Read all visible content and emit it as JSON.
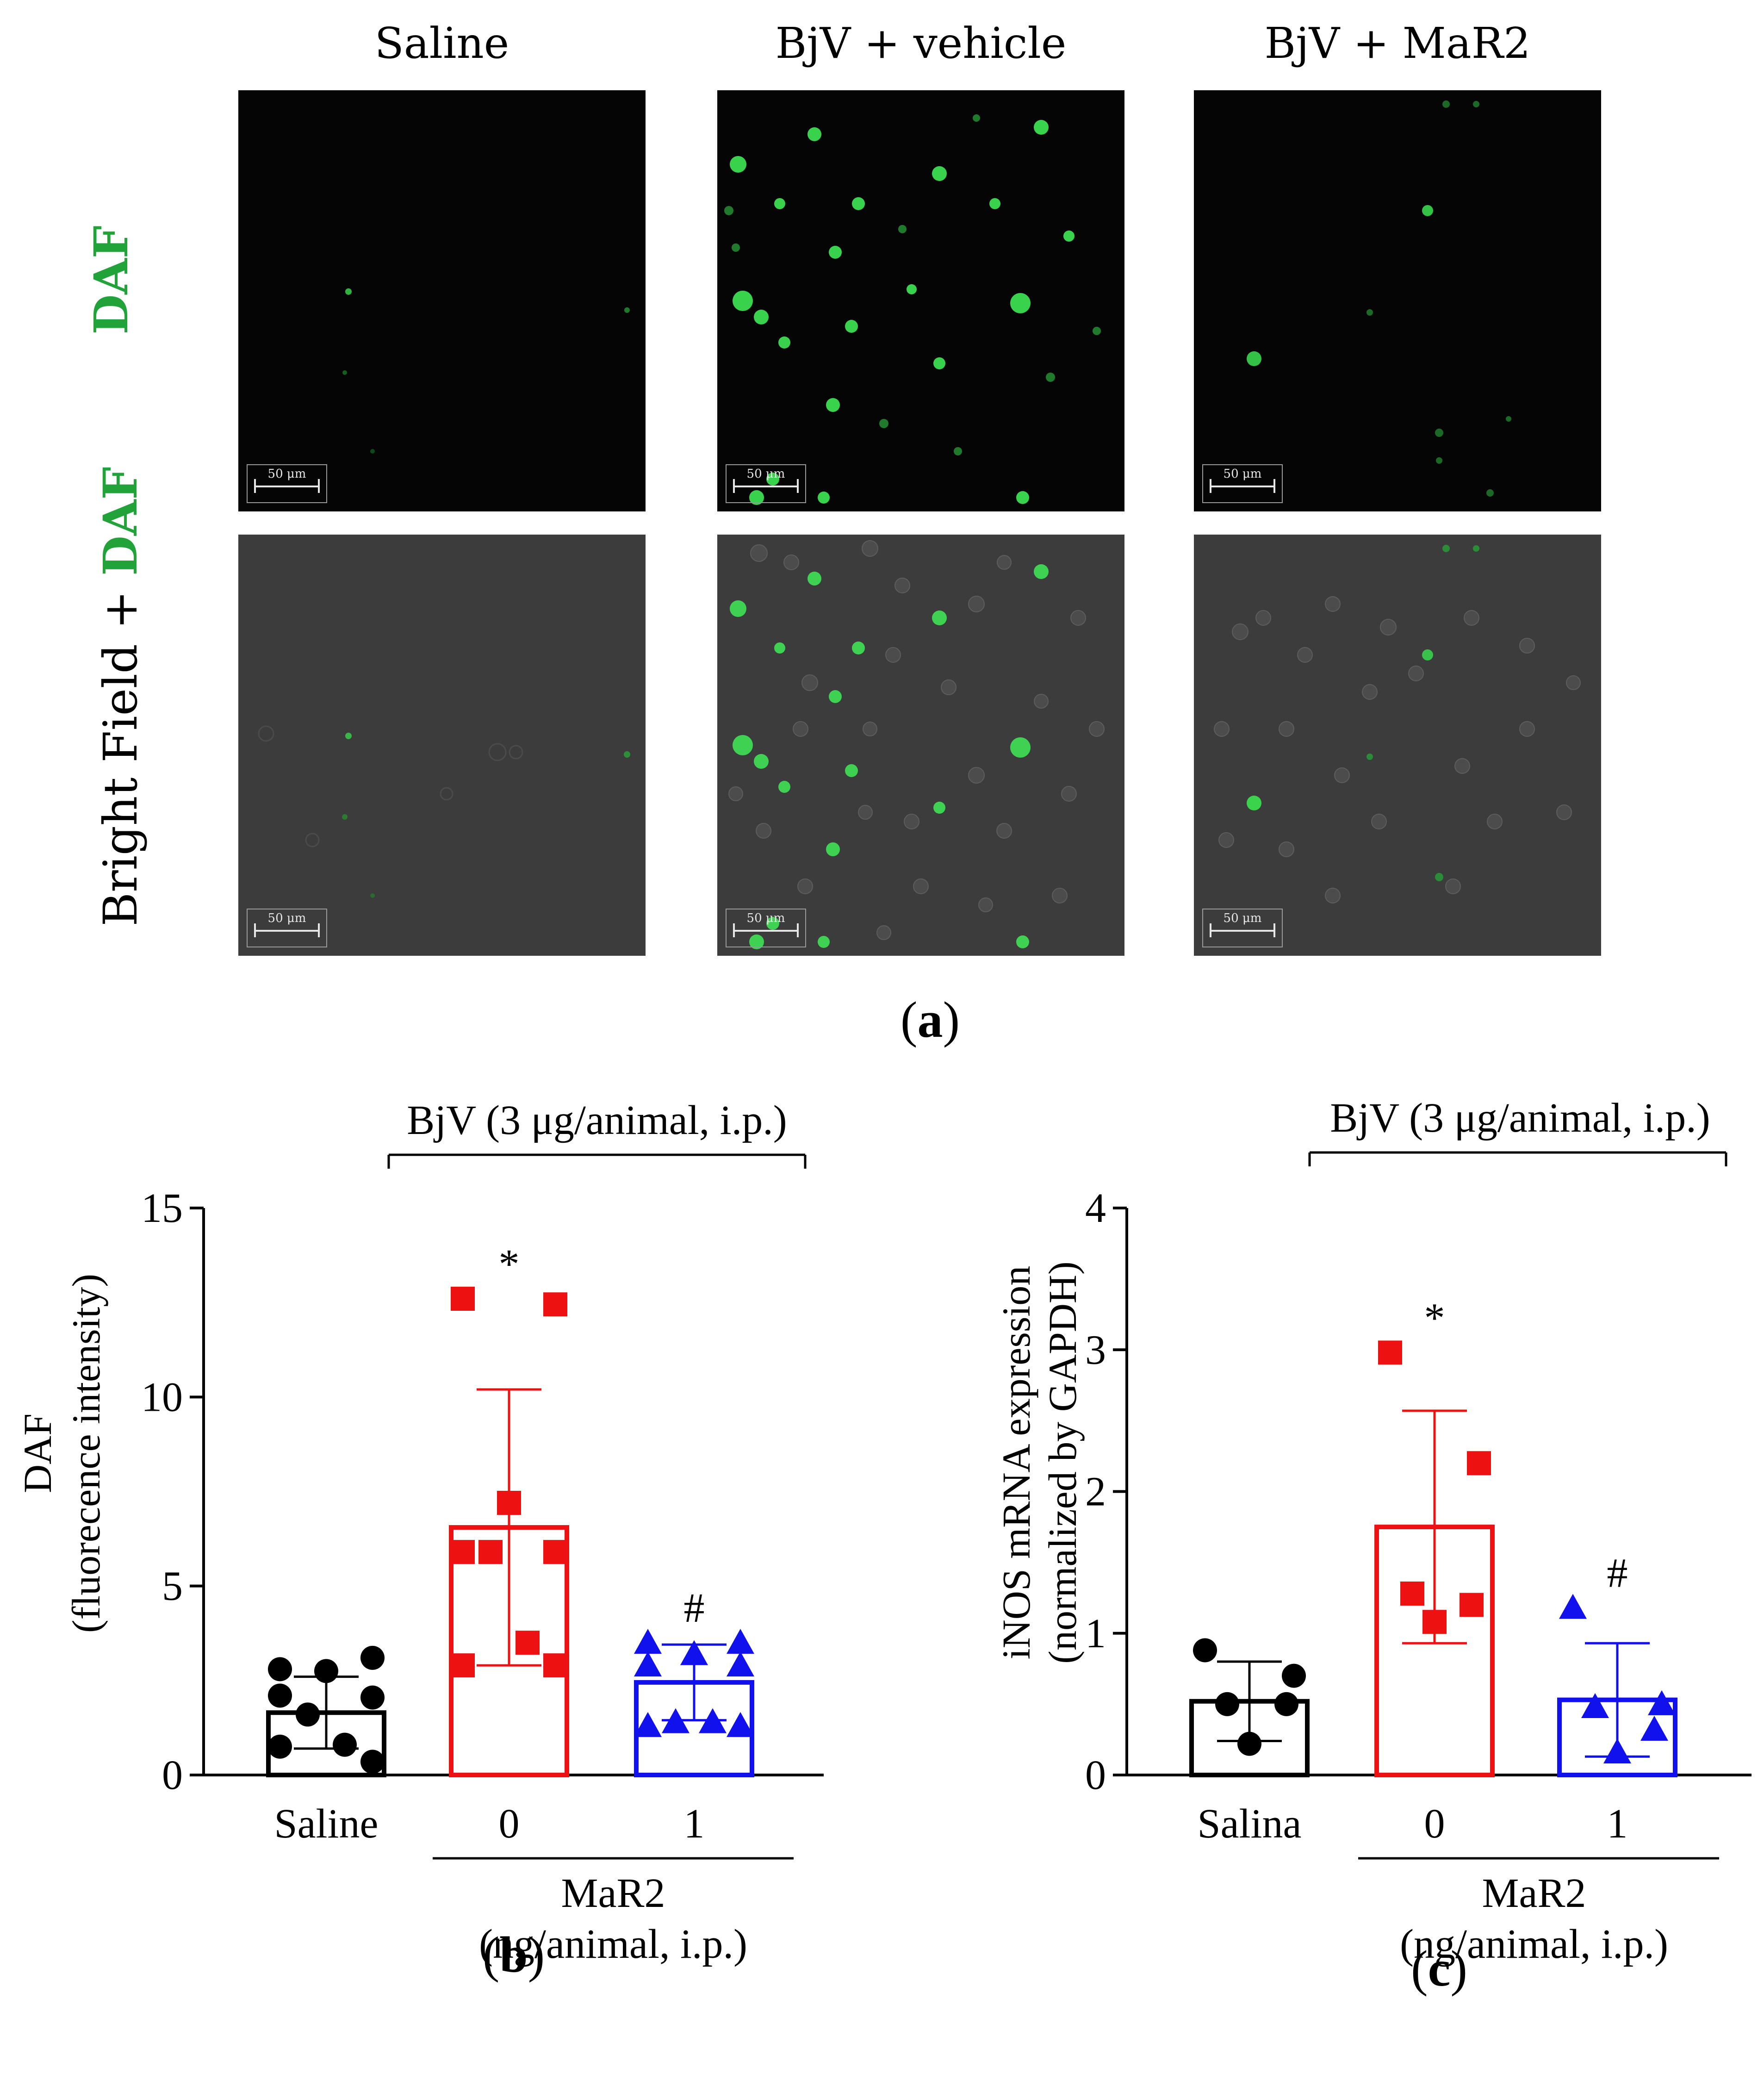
{
  "figure": {
    "panel_a": {
      "columns": [
        "Saline",
        "BjV + vehicle",
        "BjV + MaR2"
      ],
      "row_labels": {
        "row1": "DAF",
        "row2_prefix": "Bright Field + ",
        "row2_green": "DAF"
      },
      "scale_bar": "50 μm",
      "label_open": "(",
      "label_letter": "a",
      "label_close": ")"
    },
    "panel_b": {
      "label_open": "(",
      "label_letter": "b",
      "label_close": ")"
    },
    "panel_c": {
      "label_open": "(",
      "label_letter": "c",
      "label_close": ")"
    }
  },
  "colors": {
    "black": "#000000",
    "red": "#ee1111",
    "blue": "#1111ee",
    "daf_green": "#22a33a"
  },
  "chart_data": [
    {
      "type": "bar",
      "panel": "b",
      "ylabel_line1": "DAF",
      "ylabel_line2": "(fluorecence intensity)",
      "ylim": [
        0,
        15
      ],
      "yticks": [
        "0",
        "5",
        "10",
        "15"
      ],
      "categories": [
        "Saline",
        "0",
        "1"
      ],
      "group_label_line1": "MaR2",
      "group_label_line2": "(ng/animal, i.p.)",
      "bracket_label": "BjV (3 μg/animal, i.p.)",
      "series": [
        {
          "name": "Saline",
          "color": "#000000",
          "marker": "circle",
          "mean": 1.65,
          "sd": 0.95,
          "points": [
            2.8,
            3.1,
            2.75,
            2.1,
            2.05,
            1.6,
            0.8,
            0.75,
            0.35
          ],
          "annotation": ""
        },
        {
          "name": "BjV + vehicle",
          "color": "#ee1111",
          "marker": "square",
          "mean": 6.55,
          "sd": 3.65,
          "points": [
            12.6,
            12.45,
            7.2,
            5.9,
            5.9,
            5.9,
            3.5,
            2.9,
            2.9
          ],
          "annotation": "*"
        },
        {
          "name": "BjV + MaR2",
          "color": "#1111ee",
          "marker": "triangle",
          "mean": 2.45,
          "sd": 1.0,
          "points": [
            3.5,
            3.5,
            3.2,
            2.9,
            2.9,
            1.4,
            1.4,
            1.3,
            1.3
          ],
          "annotation": "#"
        }
      ]
    },
    {
      "type": "bar",
      "panel": "c",
      "ylabel_line1": "iNOS mRNA expression",
      "ylabel_line2": "(normalized by GAPDH)",
      "ylim": [
        0,
        4
      ],
      "yticks": [
        "0",
        "1",
        "2",
        "3",
        "4"
      ],
      "categories": [
        "Salina",
        "0",
        "1"
      ],
      "group_label_line1": "MaR2",
      "group_label_line2": "(ng/animal, i.p.)",
      "bracket_label": "BjV (3 μg/animal, i.p.)",
      "series": [
        {
          "name": "Salina",
          "color": "#000000",
          "marker": "circle",
          "mean": 0.52,
          "sd": 0.28,
          "points": [
            0.88,
            0.7,
            0.5,
            0.5,
            0.22
          ],
          "annotation": ""
        },
        {
          "name": "BjV + vehicle",
          "color": "#ee1111",
          "marker": "square",
          "mean": 1.75,
          "sd": 0.82,
          "points": [
            2.98,
            2.2,
            1.28,
            1.2,
            1.08
          ],
          "annotation": "*"
        },
        {
          "name": "BjV + MaR2",
          "color": "#1111ee",
          "marker": "triangle",
          "mean": 0.53,
          "sd": 0.4,
          "points": [
            1.18,
            0.5,
            0.48,
            0.32,
            0.16
          ],
          "annotation": "#"
        }
      ]
    }
  ]
}
